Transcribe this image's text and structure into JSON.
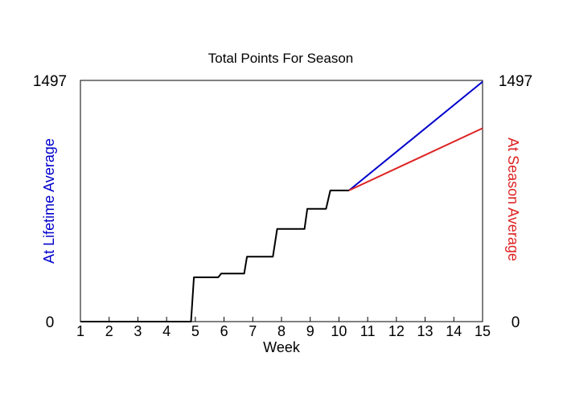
{
  "chart_data": {
    "type": "line",
    "title": "Total Points For Season",
    "xlabel": "Week",
    "ylabel_left": "At Lifetime Average",
    "ylabel_right": "At Season Average",
    "xlim": [
      1,
      15
    ],
    "ylim": [
      0,
      1497
    ],
    "x_ticks": [
      1,
      2,
      3,
      4,
      5,
      6,
      7,
      8,
      9,
      10,
      11,
      12,
      13,
      14,
      15
    ],
    "y_tick_labels_left": [
      "0",
      "1497"
    ],
    "y_tick_labels_right": [
      "0",
      "1497"
    ],
    "grid": false,
    "colors": {
      "actual": "#000000",
      "lifetime": "#0000cc",
      "season": "#dd2222"
    },
    "series": [
      {
        "key": "actual",
        "points": [
          [
            1,
            0
          ],
          [
            4.85,
            0
          ],
          [
            4.95,
            275
          ],
          [
            5.8,
            275
          ],
          [
            5.9,
            298
          ],
          [
            6.7,
            298
          ],
          [
            6.8,
            403
          ],
          [
            7.7,
            403
          ],
          [
            7.85,
            575
          ],
          [
            8.8,
            575
          ],
          [
            8.9,
            700
          ],
          [
            9.55,
            700
          ],
          [
            9.7,
            814
          ],
          [
            10.35,
            814
          ]
        ]
      },
      {
        "key": "lifetime",
        "points": [
          [
            10.35,
            814
          ],
          [
            15,
            1489
          ]
        ]
      },
      {
        "key": "season",
        "points": [
          [
            10.35,
            814
          ],
          [
            15,
            1200
          ]
        ]
      }
    ]
  }
}
